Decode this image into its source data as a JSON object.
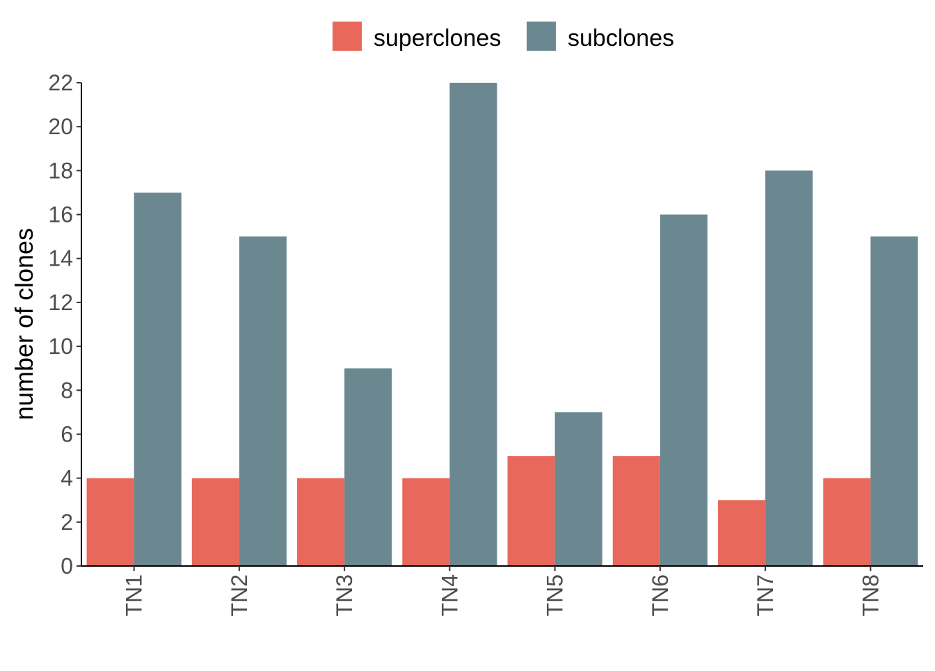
{
  "chart_data": {
    "type": "bar",
    "title": "",
    "xlabel": "",
    "ylabel": "number of clones",
    "categories": [
      "TN1",
      "TN2",
      "TN3",
      "TN4",
      "TN5",
      "TN6",
      "TN7",
      "TN8"
    ],
    "series": [
      {
        "name": "superclones",
        "color": "#e8685c",
        "values": [
          4,
          4,
          4,
          4,
          5,
          5,
          3,
          4
        ]
      },
      {
        "name": "subclones",
        "color": "#6b8891",
        "values": [
          17,
          15,
          9,
          22,
          7,
          16,
          18,
          15
        ]
      }
    ],
    "ylim": [
      0,
      22
    ],
    "yticks": [
      0,
      2,
      4,
      6,
      8,
      10,
      12,
      14,
      16,
      18,
      20,
      22
    ],
    "ytick_labels": [
      "0",
      "2",
      "4",
      "6",
      "8",
      "10",
      "12",
      "14",
      "16",
      "18",
      "20",
      "22"
    ],
    "grid": false,
    "legend_position": "top",
    "xtick_rotation": "vertical"
  }
}
